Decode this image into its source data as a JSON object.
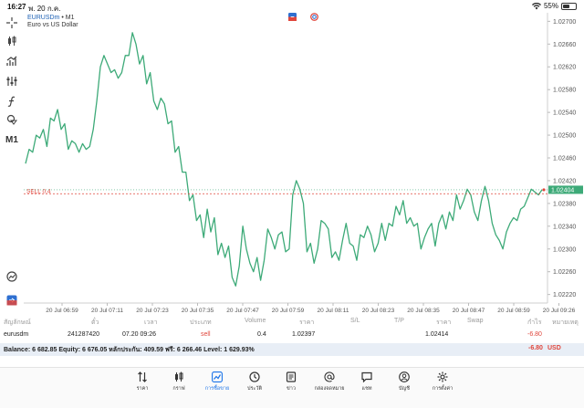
{
  "status_bar": {
    "time": "16:27",
    "date": "พ. 20 ก.ค.",
    "battery": "55%",
    "battery_level": 0.55
  },
  "chart": {
    "symbol": "EURUSDm",
    "timeframe_suffix": "• M1",
    "description": "Euro vs US Dollar",
    "sell_label": "SELL 0.4",
    "current_price_label": "1.02404",
    "timeframe_tool": "M1"
  },
  "chart_data": {
    "type": "line",
    "ylim": [
      1.02205,
      1.02715
    ],
    "y_ticks": [
      "1.02700",
      "1.02660",
      "1.02620",
      "1.02580",
      "1.02540",
      "1.02500",
      "1.02460",
      "1.02420",
      "1.02380",
      "1.02340",
      "1.02300",
      "1.02260",
      "1.02220"
    ],
    "x_ticks": [
      "20 Jul 06:59",
      "20 Jul 07:11",
      "20 Jul 07:23",
      "20 Jul 07:35",
      "20 Jul 07:47",
      "20 Jul 07:59",
      "20 Jul 08:11",
      "20 Jul 08:23",
      "20 Jul 08:35",
      "20 Jul 08:47",
      "20 Jul 08:59",
      "20 Jul 09:26"
    ],
    "sell_price": 1.02397,
    "current_price": 1.02404,
    "series": [
      {
        "color": "#3daa78",
        "values": [
          1.0245,
          1.02475,
          1.0247,
          1.025,
          1.02495,
          1.0251,
          1.0248,
          1.0253,
          1.02525,
          1.02545,
          1.0251,
          1.0252,
          1.02475,
          1.0249,
          1.02485,
          1.0247,
          1.02485,
          1.02475,
          1.0248,
          1.0251,
          1.0256,
          1.0262,
          1.0264,
          1.02625,
          1.0261,
          1.02615,
          1.026,
          1.0261,
          1.0264,
          1.0264,
          1.0268,
          1.0266,
          1.02625,
          1.0264,
          1.0259,
          1.0261,
          1.0256,
          1.02545,
          1.02565,
          1.02555,
          1.0252,
          1.02525,
          1.0247,
          1.0248,
          1.02435,
          1.02435,
          1.02385,
          1.02395,
          1.0235,
          1.0236,
          1.0232,
          1.0237,
          1.0233,
          1.02355,
          1.0229,
          1.0231,
          1.02285,
          1.02305,
          1.0225,
          1.02235,
          1.0227,
          1.0234,
          1.023,
          1.02275,
          1.0226,
          1.02285,
          1.02245,
          1.0228,
          1.02335,
          1.0232,
          1.023,
          1.02325,
          1.0233,
          1.02295,
          1.023,
          1.02395,
          1.0242,
          1.02405,
          1.0238,
          1.02295,
          1.0231,
          1.02275,
          1.023,
          1.0235,
          1.02345,
          1.02335,
          1.02285,
          1.02295,
          1.0228,
          1.02315,
          1.02345,
          1.0231,
          1.02305,
          1.0228,
          1.02325,
          1.0232,
          1.0234,
          1.02325,
          1.02295,
          1.0231,
          1.02345,
          1.02315,
          1.02345,
          1.0234,
          1.02375,
          1.0236,
          1.02385,
          1.02345,
          1.02355,
          1.0234,
          1.02345,
          1.023,
          1.0232,
          1.02335,
          1.02345,
          1.02305,
          1.02345,
          1.0236,
          1.02335,
          1.02365,
          1.0235,
          1.02395,
          1.0237,
          1.02385,
          1.02405,
          1.02395,
          1.02365,
          1.0235,
          1.02385,
          1.0241,
          1.02385,
          1.02345,
          1.02325,
          1.02315,
          1.023,
          1.0233,
          1.02345,
          1.02355,
          1.0235,
          1.0237,
          1.02375,
          1.0239,
          1.02405,
          1.024,
          1.02395,
          1.02404
        ]
      }
    ]
  },
  "trades": {
    "headers": [
      "สัญลักษณ์",
      "ตั๋ว",
      "เวลา",
      "ประเภท",
      "Volume",
      "ราคา",
      "S/L",
      "T/P",
      "ราคา",
      "Swap",
      "กำไร",
      "หมายเหตุ"
    ],
    "rows": [
      {
        "symbol": "eurusdm",
        "ticket": "241287420",
        "time": "07.20 09:26",
        "type": "sell",
        "volume": "0.4",
        "price": "1.02397",
        "sl": "",
        "tp": "",
        "current": "1.02414",
        "swap": "",
        "profit": "-6.80",
        "comment": ""
      }
    ],
    "balance": "Balance: 6 682.85 Equity: 6 676.05 หลักประกัน: 409.59 ฟรี: 6 266.46 Level: 1 629.93%",
    "total_profit": "-6.80",
    "currency": "USD"
  },
  "nav": [
    {
      "label": "ราคา",
      "icon": "quotes-icon"
    },
    {
      "label": "กราฟ",
      "icon": "chart-icon"
    },
    {
      "label": "การซื้อขาย",
      "icon": "trade-icon",
      "active": true
    },
    {
      "label": "ประวัติ",
      "icon": "history-icon"
    },
    {
      "label": "ข่าว",
      "icon": "news-icon"
    },
    {
      "label": "กล่องจดหมาย",
      "icon": "mail-icon"
    },
    {
      "label": "แชท",
      "icon": "chat-icon"
    },
    {
      "label": "บัญชี",
      "icon": "account-icon"
    },
    {
      "label": "การตั้งค่า",
      "icon": "settings-icon"
    }
  ],
  "colors": {
    "accent": "#1a73e8",
    "line": "#3daa78",
    "sell": "#e0463c",
    "grid": "#eeeeee"
  }
}
